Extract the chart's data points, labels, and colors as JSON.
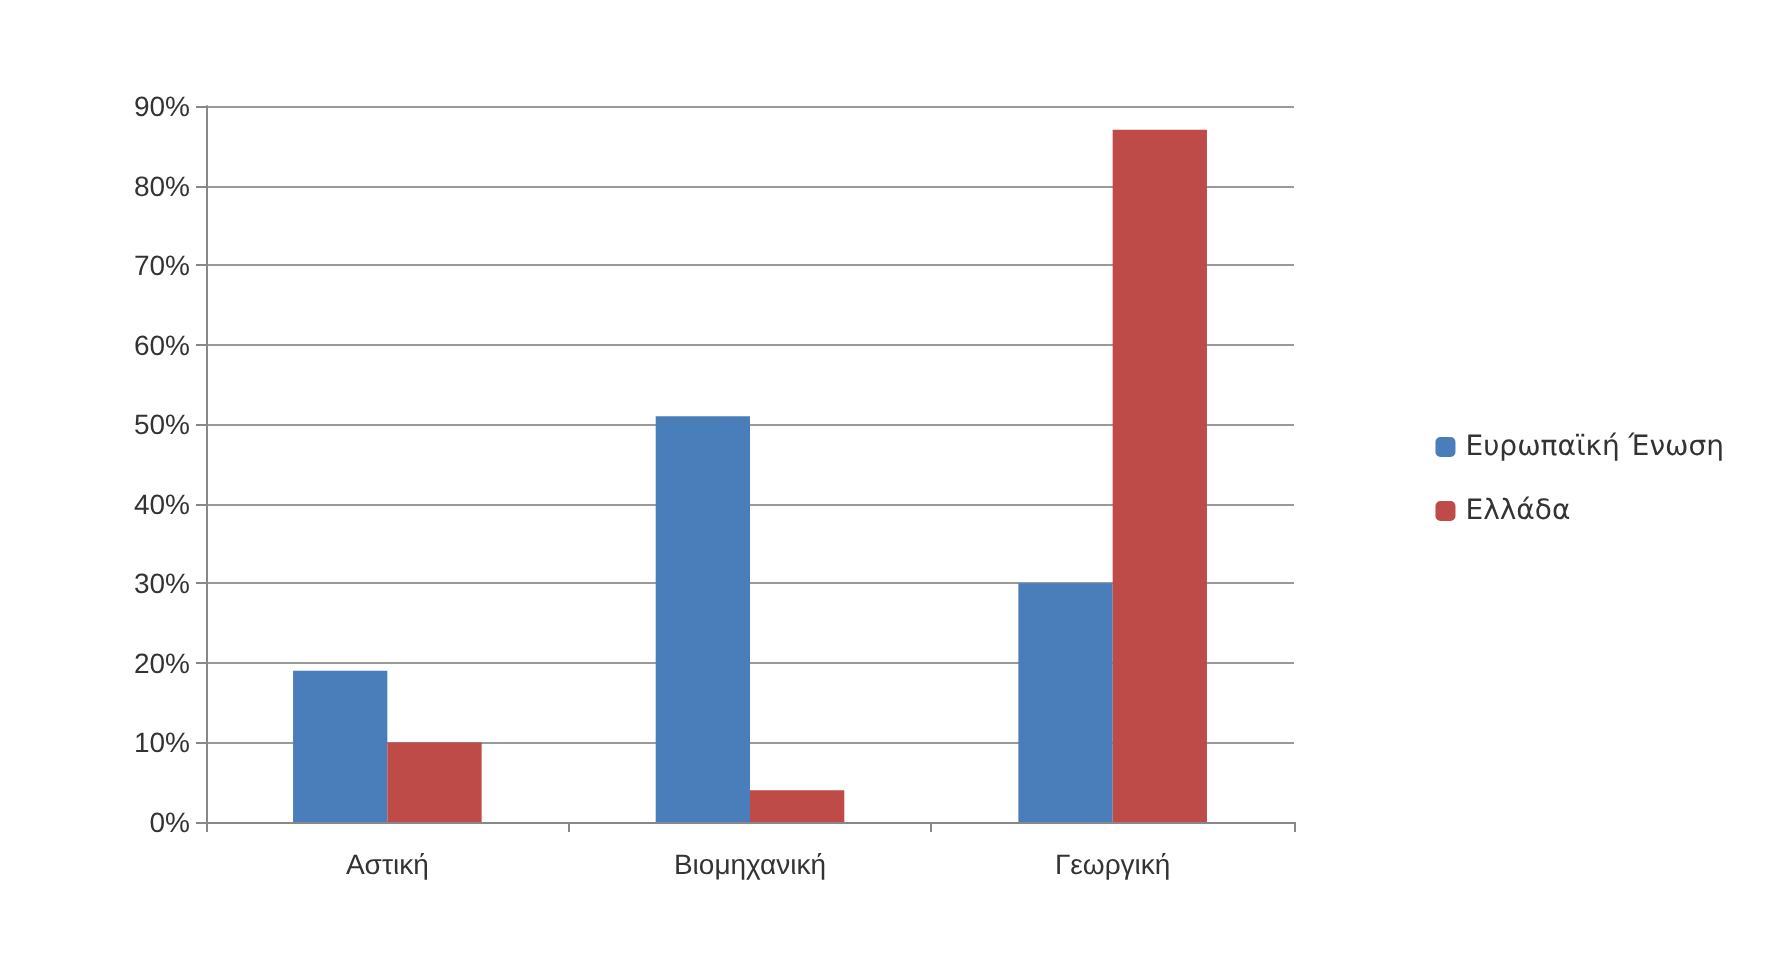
{
  "chart_data": {
    "type": "bar",
    "categories": [
      "Αστική",
      "Βιομηχανική",
      "Γεωργική"
    ],
    "series": [
      {
        "name": "Ευρωπαϊκή Ένωση",
        "color": "#4a7ebb",
        "values": [
          19,
          51,
          30
        ]
      },
      {
        "name": "Ελλάδα",
        "color": "#be4b48",
        "values": [
          10,
          4,
          87
        ]
      }
    ],
    "ylim": [
      0,
      90
    ],
    "yticks": [
      {
        "value": 0,
        "label": "0%"
      },
      {
        "value": 10,
        "label": "10%"
      },
      {
        "value": 20,
        "label": "20%"
      },
      {
        "value": 30,
        "label": "30%"
      },
      {
        "value": 40,
        "label": "40%"
      },
      {
        "value": 50,
        "label": "50%"
      },
      {
        "value": 60,
        "label": "60%"
      },
      {
        "value": 70,
        "label": "70%"
      },
      {
        "value": 80,
        "label": "80%"
      },
      {
        "value": 90,
        "label": "90%"
      }
    ],
    "grid": true,
    "legend": "right"
  }
}
